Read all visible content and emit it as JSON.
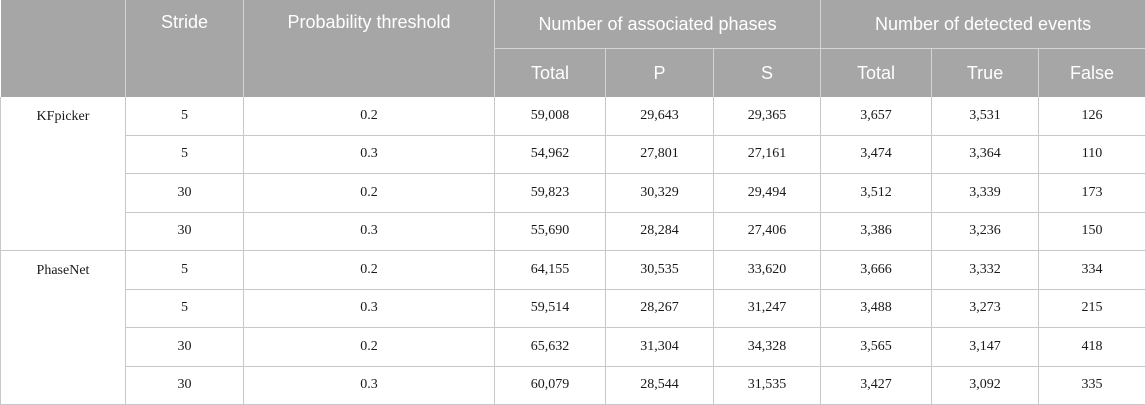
{
  "header": {
    "stride": "Stride",
    "probability_threshold": "Probability threshold",
    "associated_phases": "Number of associated phases",
    "detected_events": "Number of detected events",
    "sub": {
      "phases_total": "Total",
      "phases_p": "P",
      "phases_s": "S",
      "events_total": "Total",
      "events_true": "True",
      "events_false": "False"
    }
  },
  "groups": [
    {
      "model": "KFpicker",
      "rows": [
        [
          "5",
          "0.2",
          "59,008",
          "29,643",
          "29,365",
          "3,657",
          "3,531",
          "126"
        ],
        [
          "5",
          "0.3",
          "54,962",
          "27,801",
          "27,161",
          "3,474",
          "3,364",
          "110"
        ],
        [
          "30",
          "0.2",
          "59,823",
          "30,329",
          "29,494",
          "3,512",
          "3,339",
          "173"
        ],
        [
          "30",
          "0.3",
          "55,690",
          "28,284",
          "27,406",
          "3,386",
          "3,236",
          "150"
        ]
      ]
    },
    {
      "model": "PhaseNet",
      "rows": [
        [
          "5",
          "0.2",
          "64,155",
          "30,535",
          "33,620",
          "3,666",
          "3,332",
          "334"
        ],
        [
          "5",
          "0.3",
          "59,514",
          "28,267",
          "31,247",
          "3,488",
          "3,273",
          "215"
        ],
        [
          "30",
          "0.2",
          "65,632",
          "31,304",
          "34,328",
          "3,565",
          "3,147",
          "418"
        ],
        [
          "30",
          "0.3",
          "60,079",
          "28,544",
          "31,535",
          "3,427",
          "3,092",
          "335"
        ]
      ]
    }
  ],
  "colors": {
    "header_background": "#a6a6a6",
    "header_text": "#ffffff",
    "grid_line": "#c8c8c8"
  }
}
